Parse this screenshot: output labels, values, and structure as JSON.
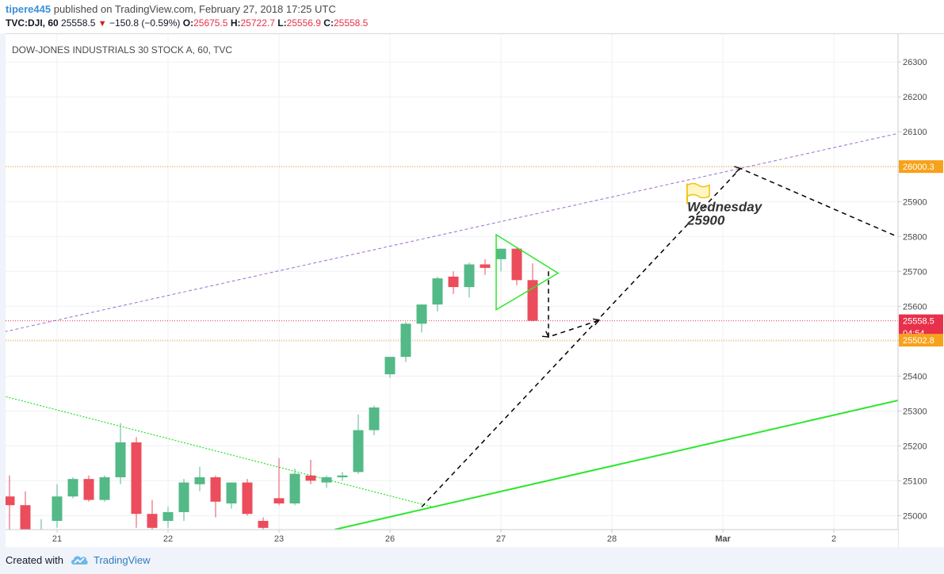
{
  "header": {
    "user": "tipere445",
    "published": "published on TradingView.com, February 27, 2018 17:25 UTC",
    "symbol": "TVC:DJI, 60",
    "last": "25558.5",
    "change": "−150.8 (−0.59%)",
    "o_label": "O:",
    "o": "25675.5",
    "h_label": "H:",
    "h": "25722.7",
    "l_label": "L:",
    "l": "25556.9",
    "c_label": "C:",
    "c": "25558.5"
  },
  "footer": {
    "created": "Created with",
    "brand": "TradingView"
  },
  "colors": {
    "up": "#53b987",
    "down": "#eb4d5c",
    "orange": "#f7a21b",
    "redline": "#e8304a",
    "channel": "#9c6fd0",
    "trend": "#2ee62e"
  },
  "chart_data": {
    "type": "candlestick",
    "title": "DOW-JONES INDUSTRIALS 30 STOCK A, 60, TVC",
    "ylim": [
      24960,
      26380
    ],
    "y_ticks": [
      25000,
      25100,
      25200,
      25300,
      25400,
      25500,
      25600,
      25700,
      25800,
      25900,
      26000,
      26100,
      26200,
      26300
    ],
    "x_ticks": [
      {
        "label": "21",
        "idx": 3
      },
      {
        "label": "22",
        "idx": 10
      },
      {
        "label": "23",
        "idx": 17
      },
      {
        "label": "26",
        "idx": 24
      },
      {
        "label": "27",
        "idx": 31
      },
      {
        "label": "28",
        "idx": 38
      },
      {
        "label": "Mar",
        "idx": 45
      },
      {
        "label": "2",
        "idx": 52
      }
    ],
    "candles": [
      {
        "o": 25055,
        "h": 25115,
        "l": 24900,
        "c": 25030
      },
      {
        "o": 25030,
        "h": 25070,
        "l": 24930,
        "c": 24960
      },
      {
        "o": 24925,
        "h": 24990,
        "l": 24890,
        "c": 24935
      },
      {
        "o": 24985,
        "h": 25090,
        "l": 24965,
        "c": 25055
      },
      {
        "o": 25055,
        "h": 25110,
        "l": 25050,
        "c": 25105
      },
      {
        "o": 25105,
        "h": 25115,
        "l": 25040,
        "c": 25045
      },
      {
        "o": 25045,
        "h": 25115,
        "l": 25040,
        "c": 25110
      },
      {
        "o": 25110,
        "h": 25265,
        "l": 25090,
        "c": 25210
      },
      {
        "o": 25210,
        "h": 25225,
        "l": 24965,
        "c": 25005
      },
      {
        "o": 25005,
        "h": 25045,
        "l": 24955,
        "c": 24965
      },
      {
        "o": 24985,
        "h": 25025,
        "l": 24965,
        "c": 25010
      },
      {
        "o": 25010,
        "h": 25105,
        "l": 24985,
        "c": 25095
      },
      {
        "o": 25090,
        "h": 25140,
        "l": 25070,
        "c": 25110
      },
      {
        "o": 25110,
        "h": 25115,
        "l": 24995,
        "c": 25040
      },
      {
        "o": 25035,
        "h": 25095,
        "l": 25020,
        "c": 25095
      },
      {
        "o": 25095,
        "h": 25105,
        "l": 25000,
        "c": 25005
      },
      {
        "o": 24985,
        "h": 24995,
        "l": 24945,
        "c": 24965
      },
      {
        "o": 25050,
        "h": 25165,
        "l": 25030,
        "c": 25035
      },
      {
        "o": 25035,
        "h": 25135,
        "l": 25030,
        "c": 25120
      },
      {
        "o": 25115,
        "h": 25160,
        "l": 25090,
        "c": 25100
      },
      {
        "o": 25095,
        "h": 25115,
        "l": 25080,
        "c": 25110
      },
      {
        "o": 25110,
        "h": 25125,
        "l": 25100,
        "c": 25115
      },
      {
        "o": 25125,
        "h": 25290,
        "l": 25120,
        "c": 25245
      },
      {
        "o": 25245,
        "h": 25315,
        "l": 25230,
        "c": 25310
      },
      {
        "o": 25405,
        "h": 25445,
        "l": 25395,
        "c": 25455
      },
      {
        "o": 25455,
        "h": 25555,
        "l": 25440,
        "c": 25550
      },
      {
        "o": 25550,
        "h": 25605,
        "l": 25525,
        "c": 25605
      },
      {
        "o": 25605,
        "h": 25685,
        "l": 25585,
        "c": 25680
      },
      {
        "o": 25685,
        "h": 25700,
        "l": 25635,
        "c": 25655
      },
      {
        "o": 25655,
        "h": 25725,
        "l": 25625,
        "c": 25720
      },
      {
        "o": 25720,
        "h": 25735,
        "l": 25690,
        "c": 25710
      },
      {
        "o": 25735,
        "h": 25765,
        "l": 25700,
        "c": 25765
      },
      {
        "o": 25765,
        "h": 25770,
        "l": 25660,
        "c": 25675
      },
      {
        "o": 25675,
        "h": 25722.7,
        "l": 25556.9,
        "c": 25558.5
      }
    ],
    "price_labels": [
      {
        "text": "26000.3",
        "value": 26000.3,
        "color": "#f7a21b"
      },
      {
        "text": "25558.5",
        "value": 25558.5,
        "color": "#e8304a"
      },
      {
        "text": "04:54",
        "value": 25523,
        "color": "#e8304a"
      },
      {
        "text": "25502.8",
        "value": 25502.8,
        "color": "#f7a21b"
      }
    ],
    "hlines": [
      {
        "value": 26000.3,
        "color": "#f7a21b"
      },
      {
        "value": 25558.5,
        "color": "#e8304a"
      },
      {
        "value": 25502.8,
        "color": "#f7a21b"
      }
    ],
    "channel_line": {
      "from": [
        -1,
        25520
      ],
      "to": [
        56.5,
        26100
      ]
    },
    "support_trend": {
      "from": [
        20.5,
        24960
      ],
      "to": [
        56.5,
        25335
      ]
    },
    "old_trend": {
      "from": [
        -1,
        25350
      ],
      "to": [
        26.7,
        25025
      ]
    },
    "triangle": [
      [
        30.7,
        25805
      ],
      [
        34.6,
        25695
      ],
      [
        30.7,
        25590
      ]
    ],
    "path_a": [
      [
        34.0,
        25700
      ],
      [
        34.0,
        25512
      ],
      [
        37.2,
        25560
      ]
    ],
    "path_b": [
      [
        26.0,
        25025
      ],
      [
        46.1,
        25995
      ],
      [
        56.5,
        25790
      ]
    ],
    "annotation": {
      "line1": "Wednesday",
      "line2": "25900",
      "anchor": [
        42.9,
        25870
      ]
    }
  }
}
